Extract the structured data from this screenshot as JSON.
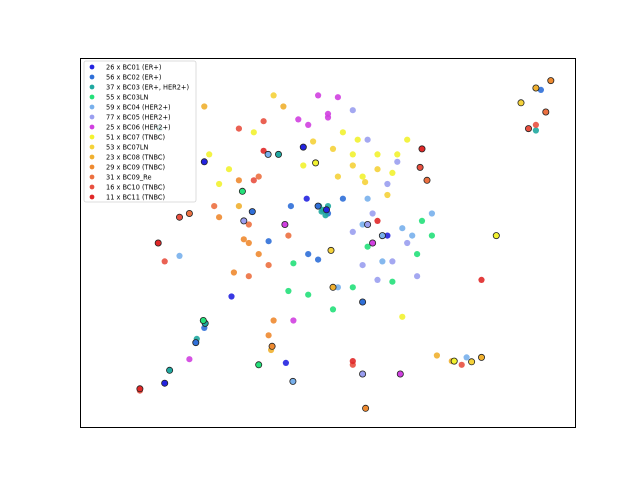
{
  "chart_data": {
    "type": "scatter",
    "title": "",
    "xlabel": "",
    "ylabel": "",
    "xlim": [
      0,
      1
    ],
    "ylim": [
      0,
      1
    ],
    "grid": false,
    "axes_ticks": false,
    "legend_position": "top-left",
    "series": [
      {
        "name": "26 x BC01 (ER+)",
        "color": "#2424e0",
        "points": [
          [
            0.305,
            0.355
          ],
          [
            0.457,
            0.62
          ],
          [
            0.415,
            0.175
          ],
          [
            0.62,
            0.52
          ]
        ]
      },
      {
        "name": "56 x BC02 (ER+)",
        "color": "#2f6fd8",
        "points": [
          [
            0.25,
            0.27
          ],
          [
            0.46,
            0.47
          ],
          [
            0.5,
            0.58
          ],
          [
            0.93,
            0.915
          ],
          [
            0.38,
            0.505
          ],
          [
            0.48,
            0.455
          ],
          [
            0.53,
            0.62
          ],
          [
            0.425,
            0.6
          ]
        ]
      },
      {
        "name": "37 x BC03 (ER+, HER2+)",
        "color": "#20a8a0",
        "points": [
          [
            0.49,
            0.59
          ],
          [
            0.487,
            0.585
          ],
          [
            0.495,
            0.575
          ],
          [
            0.482,
            0.6
          ],
          [
            0.5,
            0.6
          ],
          [
            0.16,
            0.81
          ],
          [
            0.92,
            0.805
          ],
          [
            0.235,
            0.24
          ]
        ]
      },
      {
        "name": "55 x BC03LN",
        "color": "#24e07a",
        "points": [
          [
            0.43,
            0.445
          ],
          [
            0.46,
            0.36
          ],
          [
            0.55,
            0.38
          ],
          [
            0.63,
            0.395
          ],
          [
            0.68,
            0.47
          ],
          [
            0.71,
            0.52
          ],
          [
            0.69,
            0.56
          ],
          [
            0.42,
            0.37
          ],
          [
            0.58,
            0.49
          ],
          [
            0.51,
            0.32
          ]
        ]
      },
      {
        "name": "59 x BC04 (HER2+)",
        "color": "#78b0ec",
        "points": [
          [
            0.2,
            0.465
          ],
          [
            0.57,
            0.55
          ],
          [
            0.58,
            0.62
          ],
          [
            0.65,
            0.54
          ],
          [
            0.52,
            0.38
          ],
          [
            0.71,
            0.58
          ],
          [
            0.61,
            0.45
          ],
          [
            0.67,
            0.52
          ],
          [
            0.78,
            0.19
          ]
        ]
      },
      {
        "name": "77 x BC05 (HER2+)",
        "color": "#9a9ef0",
        "points": [
          [
            0.57,
            0.44
          ],
          [
            0.6,
            0.4
          ],
          [
            0.63,
            0.45
          ],
          [
            0.66,
            0.5
          ],
          [
            0.68,
            0.41
          ],
          [
            0.55,
            0.53
          ],
          [
            0.59,
            0.58
          ],
          [
            0.62,
            0.66
          ],
          [
            0.64,
            0.72
          ],
          [
            0.55,
            0.86
          ],
          [
            0.58,
            0.78
          ]
        ]
      },
      {
        "name": "25 x BC06 (HER2+)",
        "color": "#d040e0",
        "points": [
          [
            0.48,
            0.9
          ],
          [
            0.52,
            0.895
          ],
          [
            0.44,
            0.835
          ],
          [
            0.5,
            0.84
          ],
          [
            0.46,
            0.82
          ],
          [
            0.43,
            0.29
          ],
          [
            0.22,
            0.185
          ],
          [
            0.5,
            0.85
          ]
        ]
      },
      {
        "name": "51 x BC07 (TNBC)",
        "color": "#f2f230",
        "points": [
          [
            0.56,
            0.78
          ],
          [
            0.6,
            0.74
          ],
          [
            0.64,
            0.74
          ],
          [
            0.66,
            0.78
          ],
          [
            0.53,
            0.8
          ],
          [
            0.55,
            0.74
          ],
          [
            0.57,
            0.68
          ],
          [
            0.63,
            0.69
          ],
          [
            0.26,
            0.74
          ],
          [
            0.3,
            0.7
          ],
          [
            0.65,
            0.3
          ],
          [
            0.28,
            0.66
          ],
          [
            0.35,
            0.8
          ],
          [
            0.45,
            0.71
          ]
        ]
      },
      {
        "name": "53 x BC07LN",
        "color": "#f5d23a",
        "points": [
          [
            0.52,
            0.68
          ],
          [
            0.55,
            0.71
          ],
          [
            0.6,
            0.7
          ],
          [
            0.62,
            0.63
          ],
          [
            0.51,
            0.755
          ],
          [
            0.47,
            0.775
          ],
          [
            0.575,
            0.665
          ],
          [
            0.39,
            0.9
          ]
        ]
      },
      {
        "name": "23 x BC08 (TNBC)",
        "color": "#f0b030",
        "points": [
          [
            0.38,
            0.74
          ],
          [
            0.32,
            0.6
          ],
          [
            0.25,
            0.87
          ],
          [
            0.41,
            0.87
          ],
          [
            0.72,
            0.195
          ],
          [
            0.75,
            0.18
          ],
          [
            0.385,
            0.21
          ]
        ]
      },
      {
        "name": "29 x BC09 (TNBC)",
        "color": "#ee8a30",
        "points": [
          [
            0.34,
            0.5
          ],
          [
            0.33,
            0.51
          ],
          [
            0.36,
            0.47
          ],
          [
            0.31,
            0.42
          ],
          [
            0.32,
            0.67
          ],
          [
            0.28,
            0.57
          ],
          [
            0.38,
            0.25
          ],
          [
            0.39,
            0.29
          ]
        ]
      },
      {
        "name": "31 x BC09_Re",
        "color": "#ec7040",
        "points": [
          [
            0.34,
            0.55
          ],
          [
            0.42,
            0.52
          ],
          [
            0.38,
            0.44
          ],
          [
            0.34,
            0.41
          ],
          [
            0.36,
            0.68
          ],
          [
            0.27,
            0.6
          ]
        ]
      },
      {
        "name": "16 x BC10 (TNBC)",
        "color": "#e85040",
        "points": [
          [
            0.37,
            0.83
          ],
          [
            0.32,
            0.81
          ],
          [
            0.35,
            0.67
          ],
          [
            0.17,
            0.45
          ],
          [
            0.55,
            0.17
          ],
          [
            0.12,
            0.1
          ],
          [
            0.92,
            0.82
          ],
          [
            0.77,
            0.17
          ]
        ]
      },
      {
        "name": "11 x BC11 (TNBC)",
        "color": "#e02828",
        "points": [
          [
            0.37,
            0.75
          ],
          [
            0.58,
            0.55
          ],
          [
            0.81,
            0.4
          ],
          [
            0.55,
            0.18
          ],
          [
            0.12,
            0.105
          ],
          [
            0.6,
            0.56
          ]
        ]
      }
    ],
    "black_edge_points": [
      [
        0.497,
        0.59
      ],
      [
        0.48,
        0.6
      ],
      [
        0.4,
        0.74
      ],
      [
        0.327,
        0.64
      ],
      [
        0.379,
        0.74
      ],
      [
        0.33,
        0.56
      ],
      [
        0.413,
        0.55
      ],
      [
        0.475,
        0.717
      ],
      [
        0.506,
        0.48
      ],
      [
        0.51,
        0.38
      ],
      [
        0.387,
        0.22
      ],
      [
        0.22,
        0.58
      ],
      [
        0.2,
        0.57
      ],
      [
        0.157,
        0.5
      ],
      [
        0.25,
        0.72
      ],
      [
        0.347,
        0.585
      ],
      [
        0.252,
        0.282
      ],
      [
        0.248,
        0.29
      ],
      [
        0.61,
        0.52
      ],
      [
        0.58,
        0.55
      ],
      [
        0.59,
        0.5
      ],
      [
        0.84,
        0.52
      ],
      [
        0.89,
        0.88
      ],
      [
        0.92,
        0.92
      ],
      [
        0.95,
        0.94
      ],
      [
        0.94,
        0.855
      ],
      [
        0.905,
        0.81
      ],
      [
        0.12,
        0.105
      ],
      [
        0.17,
        0.12
      ],
      [
        0.233,
        0.23
      ],
      [
        0.18,
        0.155
      ],
      [
        0.36,
        0.17
      ],
      [
        0.429,
        0.125
      ],
      [
        0.57,
        0.145
      ],
      [
        0.646,
        0.145
      ],
      [
        0.755,
        0.18
      ],
      [
        0.79,
        0.178
      ],
      [
        0.81,
        0.19
      ],
      [
        0.576,
        0.052
      ],
      [
        0.7,
        0.67
      ],
      [
        0.686,
        0.705
      ],
      [
        0.69,
        0.755
      ],
      [
        0.45,
        0.76
      ],
      [
        0.57,
        0.34
      ]
    ]
  }
}
